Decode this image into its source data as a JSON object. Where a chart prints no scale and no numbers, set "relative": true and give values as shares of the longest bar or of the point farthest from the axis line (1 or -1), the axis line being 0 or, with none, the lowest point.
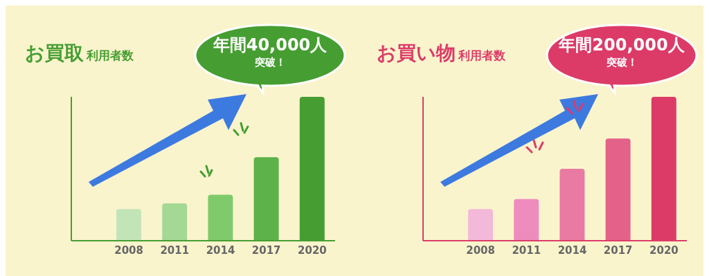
{
  "chart_data": [
    {
      "type": "bar",
      "title": "お買取",
      "subtitle": "利用者数",
      "categories": [
        "2008",
        "2011",
        "2014",
        "2017",
        "2020"
      ],
      "values": [
        0.22,
        0.26,
        0.32,
        0.58,
        1
      ],
      "colors": [
        "#c2e5b8",
        "#a3d995",
        "#7fcb6c",
        "#5db24a",
        "#469e32"
      ],
      "relative": true,
      "annotations": [
        "年間40,000人",
        "突破！"
      ]
    },
    {
      "type": "bar",
      "title": "お買い物",
      "subtitle": "利用者数",
      "categories": [
        "2008",
        "2011",
        "2014",
        "2017",
        "2020"
      ],
      "values": [
        0.22,
        0.29,
        0.5,
        0.71,
        1
      ],
      "colors": [
        "#f3b9d9",
        "#ee8cbd",
        "#e97aa1",
        "#e4628a",
        "#dc3b68"
      ],
      "relative": true,
      "annotations": [
        "年間200,000人",
        "突破！"
      ]
    }
  ]
}
